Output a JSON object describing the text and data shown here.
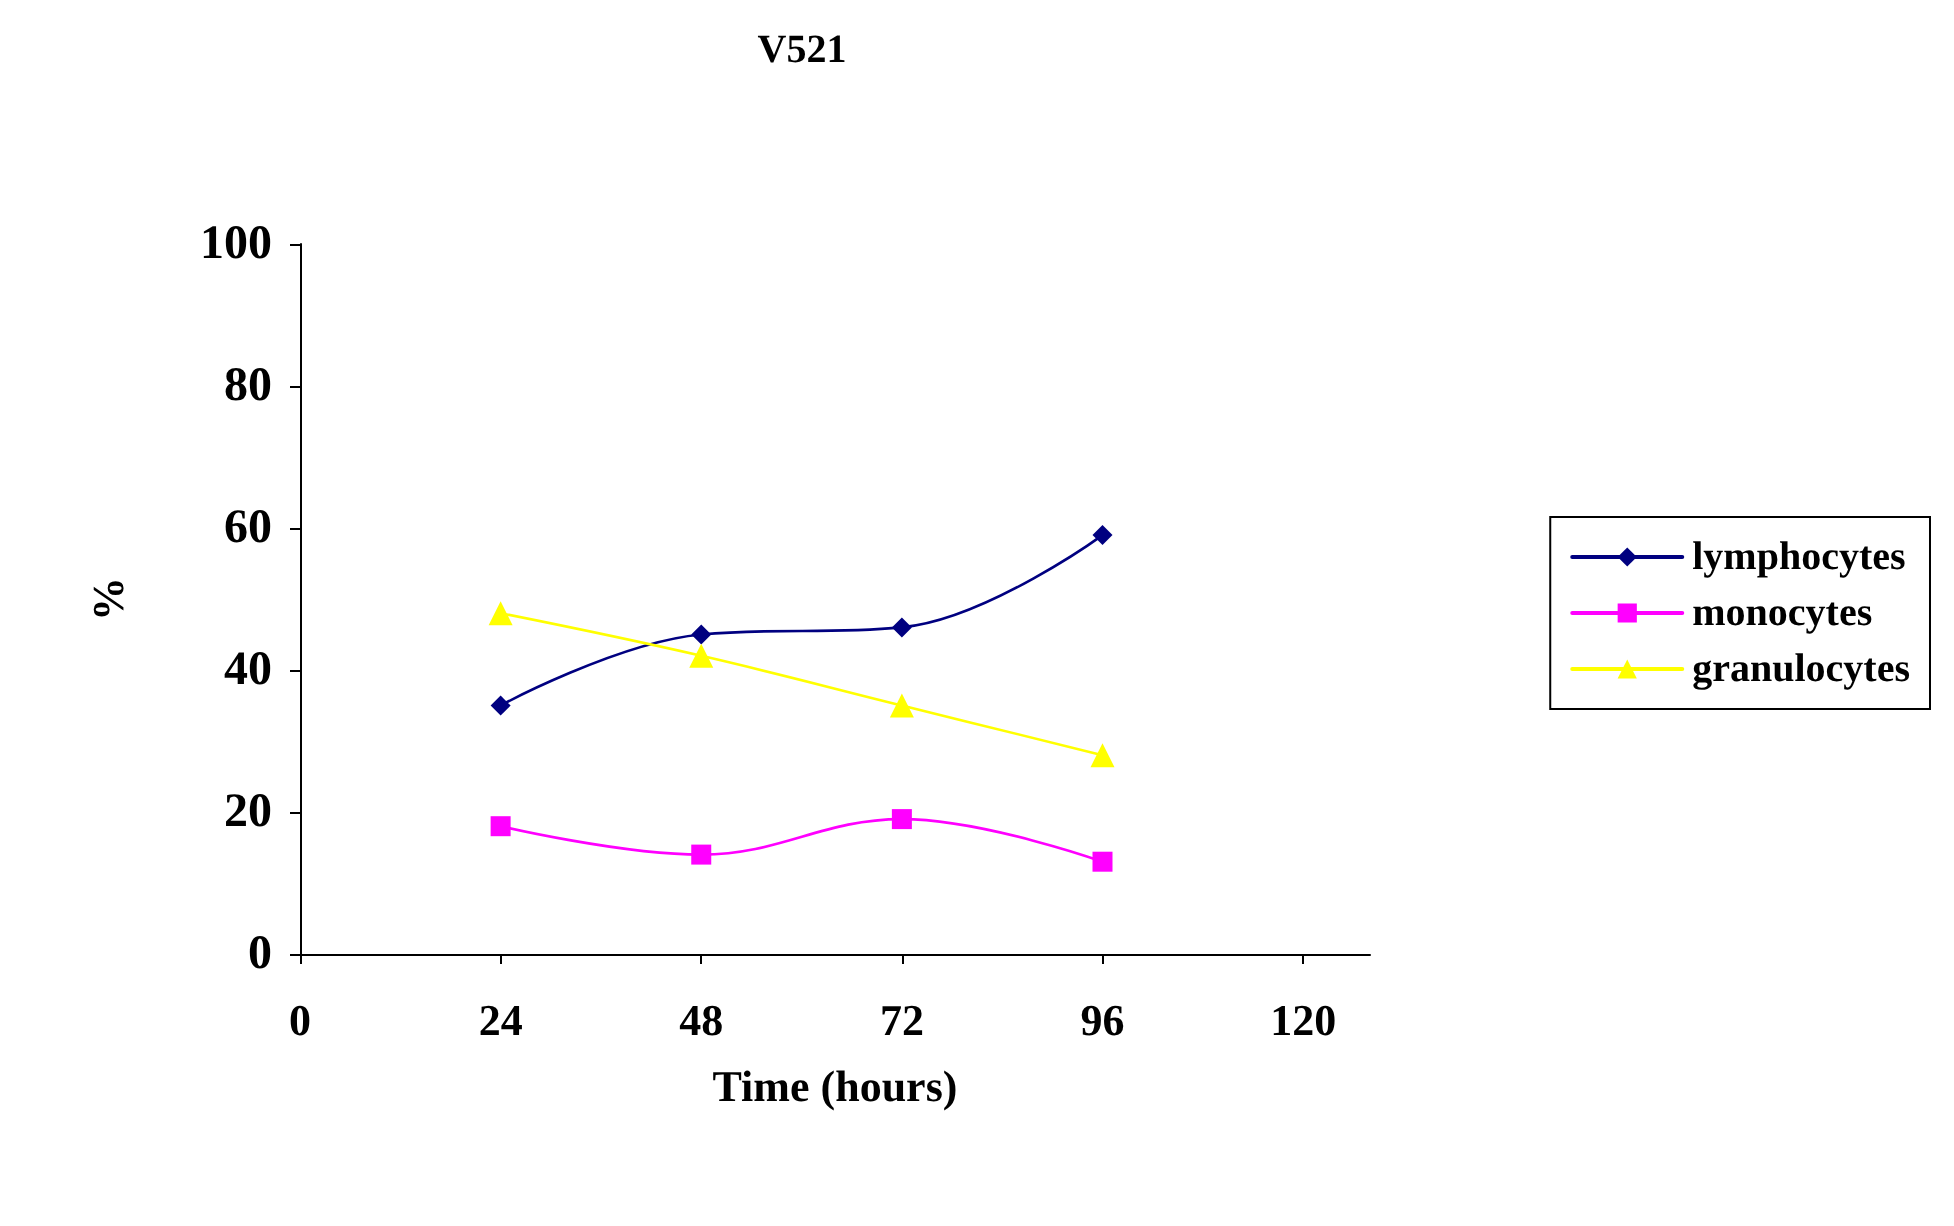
{
  "chart_data": {
    "type": "line",
    "title": "V521",
    "xlabel": "Time (hours)",
    "ylabel": "%",
    "x": [
      24,
      48,
      72,
      96
    ],
    "xlim": [
      0,
      128
    ],
    "xticks": [
      0,
      24,
      48,
      72,
      96,
      120
    ],
    "ylim": [
      0,
      100
    ],
    "yticks": [
      0,
      20,
      40,
      60,
      80,
      100
    ],
    "grid": false,
    "legend": "right",
    "line_style": "solid",
    "series": [
      {
        "name": "lymphocytes",
        "color": "#000080",
        "marker": "diamond",
        "values": [
          35,
          45,
          46,
          59
        ]
      },
      {
        "name": "monocytes",
        "color": "#ff00ff",
        "marker": "square",
        "values": [
          18,
          14,
          19,
          13
        ]
      },
      {
        "name": "granulocytes",
        "color": "#ffff00",
        "marker": "triangle",
        "values": [
          48,
          42,
          35,
          28
        ]
      }
    ]
  }
}
